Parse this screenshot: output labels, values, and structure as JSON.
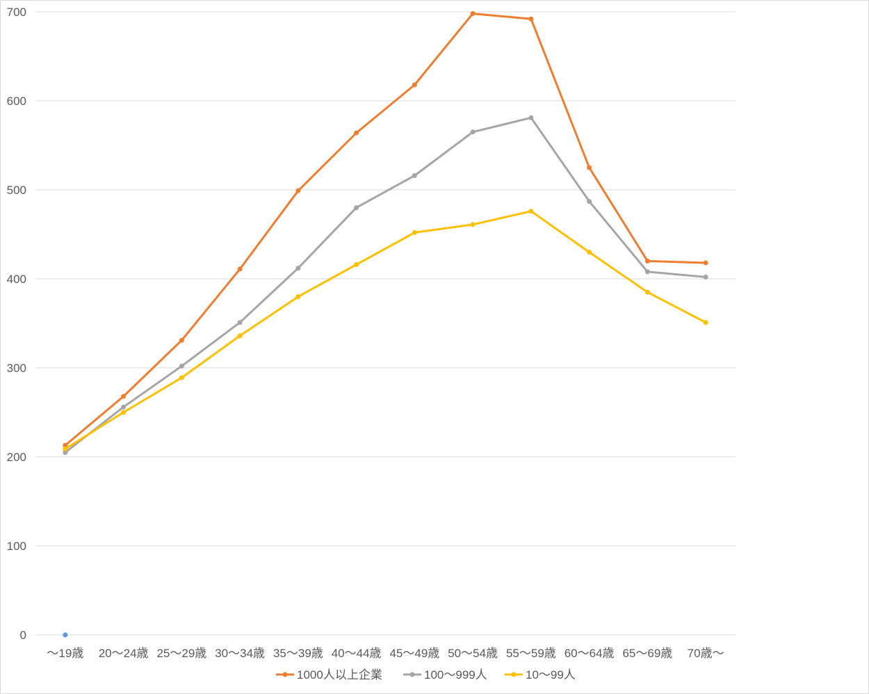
{
  "chart_data": {
    "type": "line",
    "title": "",
    "xlabel": "",
    "ylabel": "",
    "ylim": [
      0,
      700
    ],
    "yticks": [
      0,
      100,
      200,
      300,
      400,
      500,
      600,
      700
    ],
    "grid": true,
    "legend_position": "bottom",
    "categories": [
      "～19歳",
      "20～24歳",
      "25～29歳",
      "30～34歳",
      "35～39歳",
      "40～44歳",
      "45～49歳",
      "50～54歳",
      "55～59歳",
      "60～64歳",
      "65～69歳",
      "70歳～"
    ],
    "series": [
      {
        "name": "1000人以上企業",
        "color": "#ED7D31",
        "values": [
          213,
          268,
          331,
          411,
          499,
          564,
          618,
          698,
          692,
          525,
          420,
          418
        ]
      },
      {
        "name": "100～999人",
        "color": "#A5A5A5",
        "values": [
          205,
          256,
          302,
          351,
          412,
          480,
          516,
          565,
          581,
          487,
          408,
          402
        ]
      },
      {
        "name": "10～99人",
        "color": "#FFC000",
        "values": [
          209,
          250,
          289,
          336,
          380,
          416,
          452,
          461,
          476,
          430,
          385,
          351
        ]
      }
    ],
    "stray_point": {
      "category": "～19歳",
      "value": 0,
      "color": "#5B9BD5"
    }
  }
}
